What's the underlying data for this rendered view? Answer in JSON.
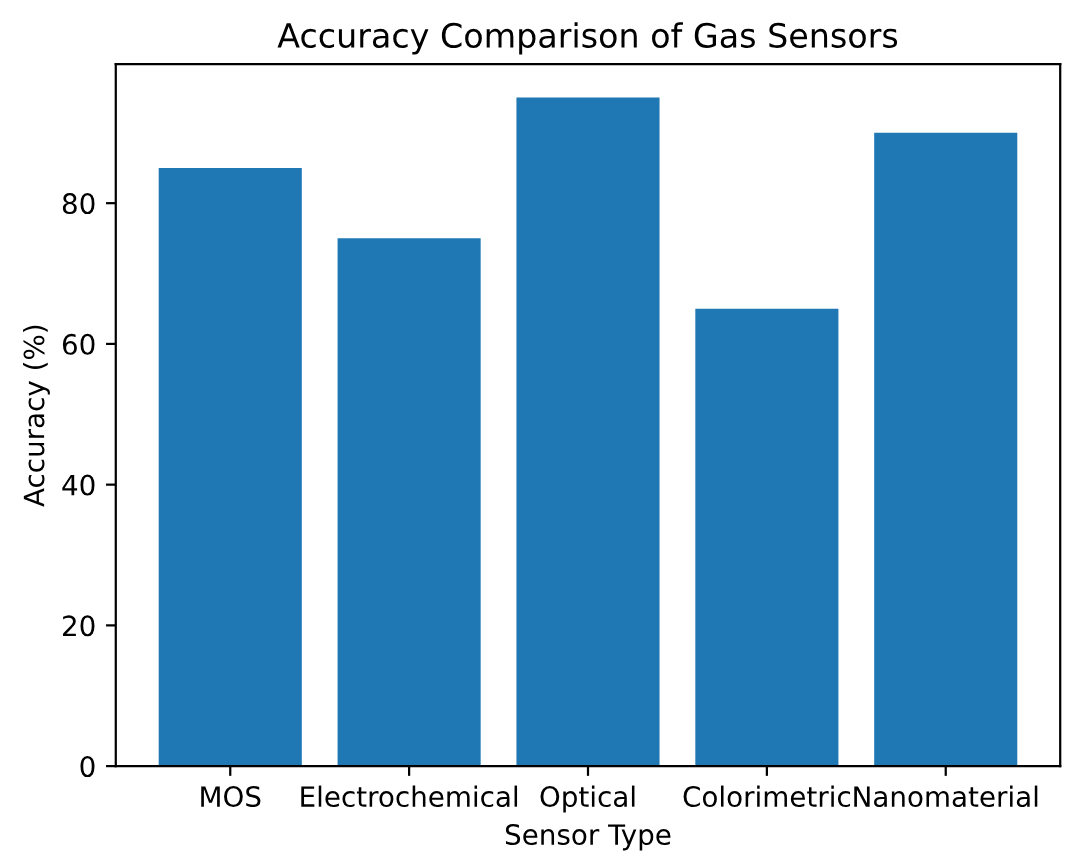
{
  "chart_data": {
    "type": "bar",
    "title": "Accuracy Comparison of Gas Sensors",
    "xlabel": "Sensor Type",
    "ylabel": "Accuracy (%)",
    "categories": [
      "MOS",
      "Electrochemical",
      "Optical",
      "Colorimetric",
      "Nanomaterial"
    ],
    "values": [
      85,
      75,
      95,
      65,
      90
    ],
    "color": "#1f77b4",
    "ylim": [
      0,
      99.75
    ],
    "yticks": [
      0,
      20,
      40,
      60,
      80
    ],
    "grid": false
  }
}
